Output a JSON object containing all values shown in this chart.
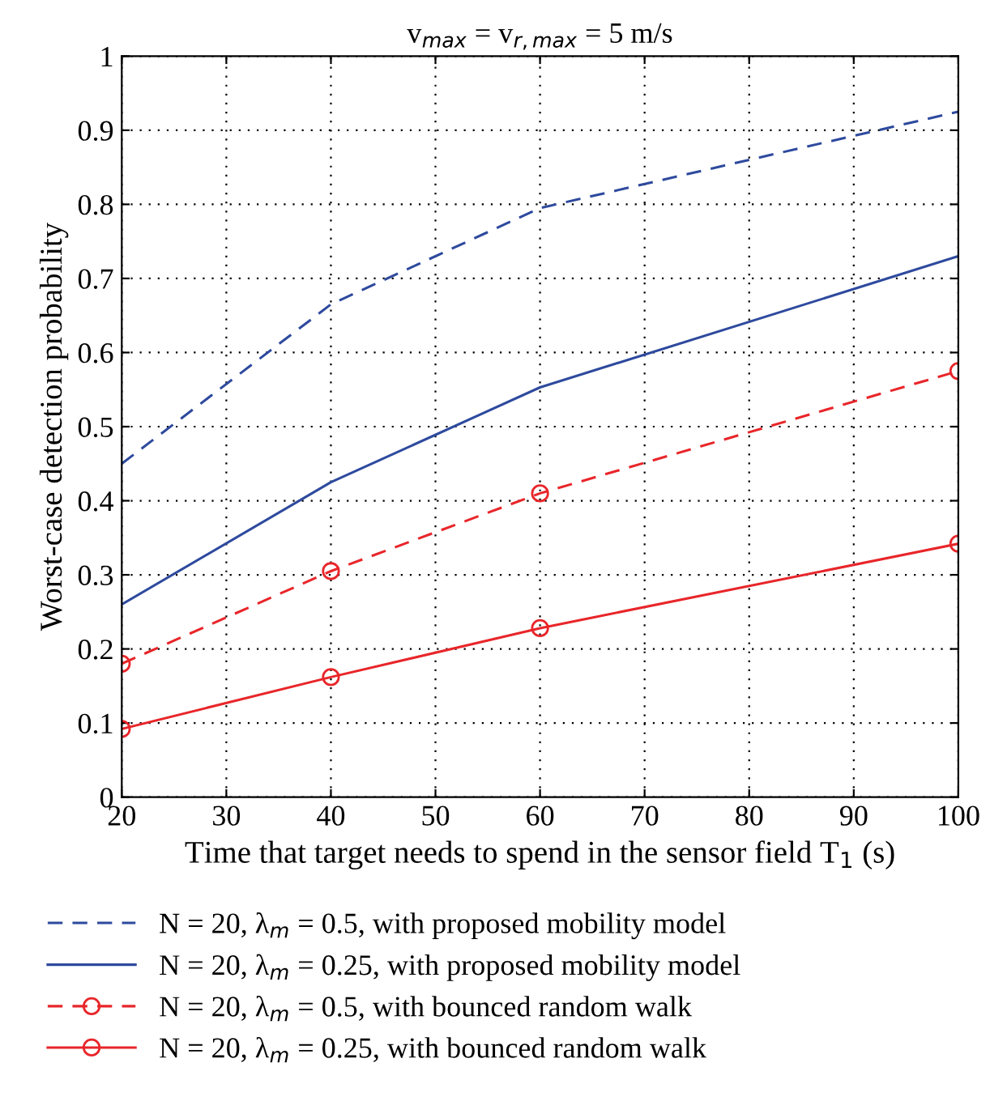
{
  "chart_data": {
    "type": "line",
    "title": "v$_{max}$ = v$_{r,max}$ = 5 m/s",
    "xlabel": "Time that target needs to spend in the sensor field T$_{1}$ (s)",
    "ylabel": "Worst-case detection probability",
    "x": [
      20,
      40,
      60,
      100
    ],
    "series": [
      {
        "name": "N = 20, λ$_{m}$ = 0.5, with proposed mobility model",
        "color": "#2e4a9e",
        "line_style": "dashed",
        "marker": "none",
        "values": [
          0.45,
          0.665,
          0.795,
          0.925
        ]
      },
      {
        "name": "N = 20, λ$_{m}$ = 0.25, with proposed mobility model",
        "color": "#2e4a9e",
        "line_style": "solid",
        "marker": "none",
        "values": [
          0.26,
          0.425,
          0.553,
          0.73
        ]
      },
      {
        "name": "N = 20, λ$_{m}$ = 0.5, with bounced random walk",
        "color": "#e8262a",
        "line_style": "dashed",
        "marker": "circle",
        "values": [
          0.18,
          0.305,
          0.41,
          0.575
        ]
      },
      {
        "name": "N = 20, λ$_{m}$ = 0.25, with bounced random walk",
        "color": "#e8262a",
        "line_style": "solid",
        "marker": "circle",
        "values": [
          0.092,
          0.162,
          0.228,
          0.342
        ]
      }
    ],
    "xlim": [
      20,
      100
    ],
    "xticks": [
      20,
      30,
      40,
      50,
      60,
      70,
      80,
      90,
      100
    ],
    "ylim": [
      0,
      1
    ],
    "yticks": [
      0,
      0.1,
      0.2,
      0.3,
      0.4,
      0.5,
      0.6,
      0.7,
      0.8,
      0.9,
      1
    ],
    "grid": true,
    "legend": "bottom"
  }
}
